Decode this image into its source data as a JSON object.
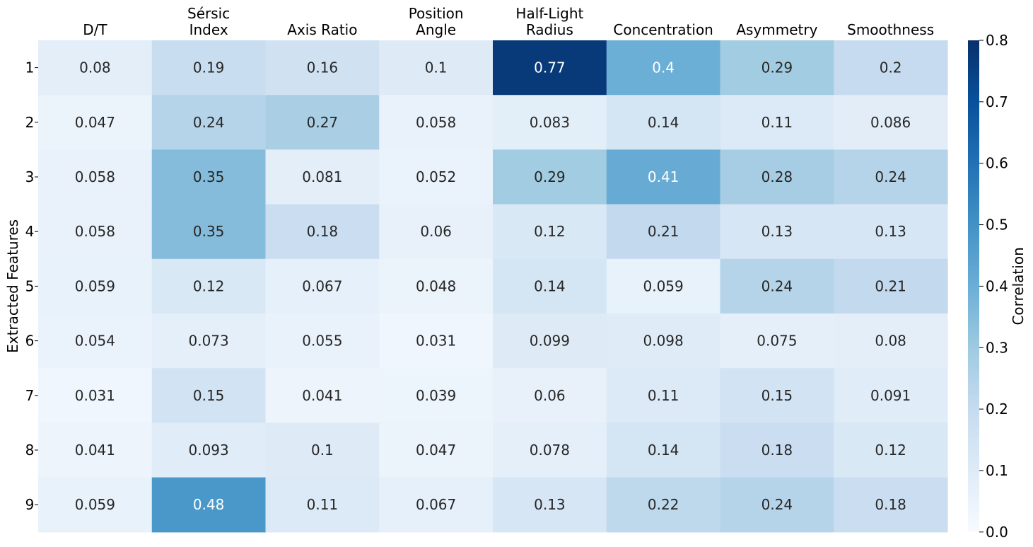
{
  "chart_data": {
    "type": "heatmap",
    "title": "",
    "xlabel": "",
    "ylabel": "Extracted Features",
    "columns": [
      [
        "D/T"
      ],
      [
        "Sérsic",
        "Index"
      ],
      [
        "Axis Ratio"
      ],
      [
        "Position",
        "Angle"
      ],
      [
        "Half-Light",
        "Radius"
      ],
      [
        "Concentration"
      ],
      [
        "Asymmetry"
      ],
      [
        "Smoothness"
      ]
    ],
    "rows": [
      "1",
      "2",
      "3",
      "4",
      "5",
      "6",
      "7",
      "8",
      "9"
    ],
    "values": [
      [
        0.08,
        0.19,
        0.16,
        0.1,
        0.77,
        0.4,
        0.29,
        0.2
      ],
      [
        0.047,
        0.24,
        0.27,
        0.058,
        0.083,
        0.14,
        0.11,
        0.086
      ],
      [
        0.058,
        0.35,
        0.081,
        0.052,
        0.29,
        0.41,
        0.28,
        0.24
      ],
      [
        0.058,
        0.35,
        0.18,
        0.06,
        0.12,
        0.21,
        0.13,
        0.13
      ],
      [
        0.059,
        0.12,
        0.067,
        0.048,
        0.14,
        0.059,
        0.24,
        0.21
      ],
      [
        0.054,
        0.073,
        0.055,
        0.031,
        0.099,
        0.098,
        0.075,
        0.08
      ],
      [
        0.031,
        0.15,
        0.041,
        0.039,
        0.06,
        0.11,
        0.15,
        0.091
      ],
      [
        0.041,
        0.093,
        0.1,
        0.047,
        0.078,
        0.14,
        0.18,
        0.12
      ],
      [
        0.059,
        0.48,
        0.11,
        0.067,
        0.13,
        0.22,
        0.24,
        0.18
      ]
    ],
    "colorbar": {
      "label": "Correlation",
      "range": [
        0.0,
        0.8
      ],
      "ticks": [
        "0.0",
        "0.1",
        "0.2",
        "0.3",
        "0.4",
        "0.5",
        "0.6",
        "0.7",
        "0.8"
      ],
      "colormap": "Blues",
      "stops": [
        "#f7fbff",
        "#deebf7",
        "#c6dbef",
        "#9ecae1",
        "#6baed6",
        "#4292c6",
        "#2171b5",
        "#08519c",
        "#08306b"
      ]
    },
    "grid": false
  }
}
